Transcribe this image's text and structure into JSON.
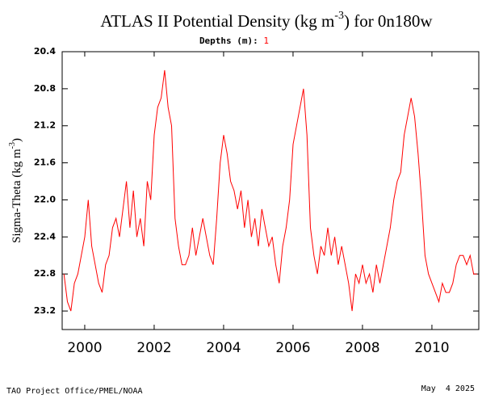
{
  "chart_data": {
    "type": "line",
    "title": "ATLAS II Potential Density (kg m",
    "title_superscript": "-3",
    "title_end": ") for 0n180w",
    "subtitle": "Depths (m):",
    "subtitle_depth": "1",
    "ylabel": "Sigma-Theta (kg m",
    "ylabel_superscript": "-3",
    "ylabel_end": ")",
    "footer_left": "TAO Project Office/PMEL/NOAA",
    "footer_right": "May  4 2025",
    "color": "#ff0000",
    "y_inverted": true,
    "ylim": [
      20.4,
      23.4
    ],
    "yticks": [
      20.4,
      20.8,
      21.2,
      21.6,
      {
        "value": 22,
        "label": "22.0"
      },
      22.4,
      22.8,
      23.2
    ],
    "xlim": [
      1999.85,
      2011.85
    ],
    "xticks": [
      {
        "value": 2000.5,
        "label": "2000"
      },
      {
        "value": 2002.5,
        "label": "2002"
      },
      {
        "value": 2004.5,
        "label": "2004"
      },
      {
        "value": 2006.5,
        "label": "2006"
      },
      {
        "value": 2008.5,
        "label": "2008"
      },
      {
        "value": 2010.5,
        "label": "2010"
      }
    ],
    "x": [
      1999.9,
      2000.0,
      2000.1,
      2000.2,
      2000.3,
      2000.4,
      2000.5,
      2000.6,
      2000.7,
      2000.8,
      2000.9,
      2001.0,
      2001.1,
      2001.2,
      2001.3,
      2001.4,
      2001.5,
      2001.6,
      2001.7,
      2001.8,
      2001.9,
      2002.0,
      2002.1,
      2002.2,
      2002.3,
      2002.4,
      2002.5,
      2002.6,
      2002.7,
      2002.8,
      2002.9,
      2003.0,
      2003.1,
      2003.2,
      2003.3,
      2003.4,
      2003.5,
      2003.6,
      2003.7,
      2003.8,
      2003.9,
      2004.0,
      2004.1,
      2004.2,
      2004.3,
      2004.4,
      2004.5,
      2004.6,
      2004.7,
      2004.8,
      2004.9,
      2005.0,
      2005.1,
      2005.2,
      2005.3,
      2005.4,
      2005.5,
      2005.6,
      2005.7,
      2005.8,
      2005.9,
      2006.0,
      2006.1,
      2006.2,
      2006.3,
      2006.4,
      2006.5,
      2006.6,
      2006.7,
      2006.8,
      2006.9,
      2007.0,
      2007.1,
      2007.2,
      2007.3,
      2007.4,
      2007.5,
      2007.6,
      2007.7,
      2007.8,
      2007.9,
      2008.0,
      2008.1,
      2008.2,
      2008.3,
      2008.4,
      2008.5,
      2008.6,
      2008.7,
      2008.8,
      2008.9,
      2009.0,
      2009.1,
      2009.2,
      2009.3,
      2009.4,
      2009.5,
      2009.6,
      2009.7,
      2009.8,
      2009.9,
      2010.0,
      2010.1,
      2010.2,
      2010.3,
      2010.4,
      2010.5,
      2010.6,
      2010.7,
      2010.8,
      2010.9,
      2011.0,
      2011.1,
      2011.2,
      2011.3,
      2011.4,
      2011.5,
      2011.6,
      2011.7,
      2011.8
    ],
    "values": [
      22.8,
      23.1,
      23.2,
      22.9,
      22.8,
      22.6,
      22.4,
      22.0,
      22.5,
      22.7,
      22.9,
      23.0,
      22.7,
      22.6,
      22.3,
      22.2,
      22.4,
      22.1,
      21.8,
      22.3,
      21.9,
      22.4,
      22.2,
      22.5,
      21.8,
      22.0,
      21.3,
      21.0,
      20.9,
      20.6,
      21.0,
      21.2,
      22.2,
      22.5,
      22.7,
      22.7,
      22.6,
      22.3,
      22.6,
      22.4,
      22.2,
      22.4,
      22.6,
      22.7,
      22.2,
      21.6,
      21.3,
      21.5,
      21.8,
      21.9,
      22.1,
      21.9,
      22.3,
      22.0,
      22.4,
      22.2,
      22.5,
      22.1,
      22.3,
      22.5,
      22.4,
      22.7,
      22.9,
      22.5,
      22.3,
      22.0,
      21.4,
      21.2,
      21.0,
      20.8,
      21.3,
      22.3,
      22.6,
      22.8,
      22.5,
      22.6,
      22.3,
      22.6,
      22.4,
      22.7,
      22.5,
      22.7,
      22.9,
      23.2,
      22.8,
      22.9,
      22.7,
      22.9,
      22.8,
      23.0,
      22.7,
      22.9,
      22.7,
      22.5,
      22.3,
      22.0,
      21.8,
      21.7,
      21.3,
      21.1,
      20.9,
      21.1,
      21.5,
      22.0,
      22.6,
      22.8,
      22.9,
      23.0,
      23.1,
      22.9,
      23.0,
      23.0,
      22.9,
      22.7,
      22.6,
      22.6,
      22.7,
      22.6,
      22.8,
      22.8
    ]
  }
}
